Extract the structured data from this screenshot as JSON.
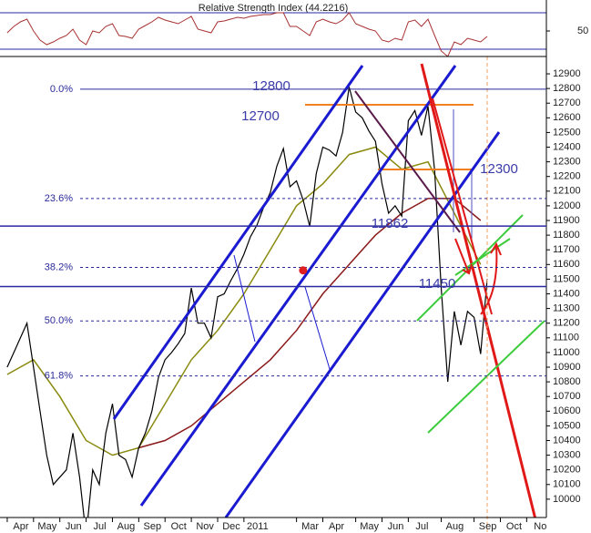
{
  "chart_data": {
    "type": "line",
    "rsi_title": "Relative Strength Index (44.2216)",
    "x": [
      0,
      1,
      2,
      3,
      4,
      5,
      6,
      7,
      8,
      9,
      10,
      11,
      12,
      13,
      14,
      15,
      16,
      17,
      18,
      19,
      20,
      21,
      22,
      23,
      24,
      25,
      26,
      27,
      28,
      29,
      30,
      31,
      32,
      33,
      34,
      35,
      36,
      37,
      38,
      39,
      40,
      41,
      42,
      43,
      44,
      45,
      46,
      47,
      48,
      49,
      50,
      51,
      52,
      53,
      54,
      55,
      56,
      57,
      58,
      59,
      60,
      61,
      62,
      63,
      64,
      65,
      66,
      67,
      68,
      69,
      70,
      71,
      72,
      73
    ],
    "series": [
      {
        "color": "#000000",
        "values": [
          10900,
          11000,
          11100,
          11200,
          10900,
          10600,
          10300,
          10100,
          10150,
          10200,
          10450,
          10150,
          9750,
          10200,
          10100,
          10450,
          10650,
          10300,
          10270,
          10150,
          10350,
          10450,
          10600,
          10830,
          10950,
          11000,
          11060,
          11130,
          11440,
          11200,
          11200,
          11100,
          11380,
          11400,
          11490,
          11570,
          11670,
          11790,
          11870,
          11990,
          12090,
          12270,
          12390,
          12130,
          12170,
          12040,
          11860,
          12220,
          12400,
          12380,
          12340,
          12500,
          12810,
          12640,
          12600,
          12510,
          12440,
          12150,
          11950,
          12000,
          11930,
          12580,
          12650,
          12480,
          12680,
          12240,
          11440,
          10800,
          11280,
          11050,
          11280,
          11240,
          10990,
          11500
        ]
      }
    ],
    "moving_averages": [
      {
        "color": "#8a8a10",
        "x": [
          0,
          4,
          8,
          12,
          16,
          20,
          24,
          28,
          32,
          36,
          40,
          44,
          48,
          52,
          56,
          60,
          64,
          68,
          72
        ],
        "values": [
          10850,
          10950,
          10700,
          10400,
          10300,
          10350,
          10650,
          10950,
          11150,
          11400,
          11700,
          12000,
          12150,
          12350,
          12400,
          12250,
          12300,
          11950,
          11600
        ]
      },
      {
        "color": "#8b1a1a",
        "x": [
          20,
          24,
          28,
          32,
          36,
          40,
          44,
          48,
          52,
          56,
          60,
          64,
          68,
          72
        ],
        "values": [
          10350,
          10400,
          10500,
          10650,
          10800,
          10950,
          11150,
          11400,
          11600,
          11800,
          11950,
          12050,
          12050,
          11900
        ]
      }
    ],
    "rsi": {
      "color": "#a83232",
      "values": [
        48,
        55,
        60,
        63,
        50,
        40,
        35,
        38,
        42,
        45,
        52,
        40,
        35,
        50,
        48,
        55,
        58,
        45,
        44,
        42,
        52,
        56,
        60,
        65,
        62,
        60,
        58,
        62,
        66,
        52,
        50,
        48,
        60,
        61,
        63,
        65,
        64,
        66,
        67,
        68,
        68,
        70,
        70,
        55,
        55,
        50,
        45,
        60,
        63,
        60,
        58,
        62,
        70,
        58,
        55,
        52,
        50,
        40,
        38,
        42,
        40,
        60,
        62,
        55,
        63,
        45,
        28,
        22,
        38,
        35,
        42,
        40,
        38,
        44
      ],
      "ylim": [
        22,
        84
      ],
      "yticks": [
        50
      ],
      "levels": [
        30,
        70
      ]
    },
    "xlim": [
      -1.1,
      82
    ],
    "xticks": [
      {
        "value": 0,
        "label": "Apr"
      },
      {
        "value": 4,
        "label": "May"
      },
      {
        "value": 8,
        "label": "Jun"
      },
      {
        "value": 12,
        "label": "Jul"
      },
      {
        "value": 16,
        "label": "Aug"
      },
      {
        "value": 20,
        "label": "Sep"
      },
      {
        "value": 24,
        "label": "Oct"
      },
      {
        "value": 28,
        "label": "Nov"
      },
      {
        "value": 32,
        "label": "Dec"
      },
      {
        "value": 36,
        "label": "2011"
      },
      {
        "value": 44,
        "label": "Mar"
      },
      {
        "value": 48,
        "label": "Apr"
      },
      {
        "value": 53,
        "label": "May"
      },
      {
        "value": 57,
        "label": "Jun"
      },
      {
        "value": 61,
        "label": "Jul"
      },
      {
        "value": 66,
        "label": "Aug"
      },
      {
        "value": 71,
        "label": "Sep"
      },
      {
        "value": 75,
        "label": "Oct"
      },
      {
        "value": 79,
        "label": "No"
      }
    ],
    "ylim": [
      9875,
      13012
    ],
    "yticks": [
      10000,
      10100,
      10200,
      10300,
      10400,
      10500,
      10600,
      10700,
      10800,
      10900,
      11000,
      11100,
      11200,
      11300,
      11400,
      11500,
      11600,
      11700,
      11800,
      11900,
      12000,
      12100,
      12200,
      12300,
      12400,
      12500,
      12600,
      12700,
      12800,
      12900
    ],
    "fib_levels": [
      {
        "ratio_label": "0.0%",
        "price": 12795
      },
      {
        "ratio_label": "23.6%",
        "price": 12050
      },
      {
        "ratio_label": "38.2%",
        "price": 11580
      },
      {
        "ratio_label": "50.0%",
        "price": 11215
      },
      {
        "ratio_label": "61.8%",
        "price": 10840
      }
    ],
    "levels": [
      11862,
      11450
    ],
    "price_labels": [
      12800,
      12700,
      12300,
      11862,
      11450
    ],
    "marker_x": 45,
    "marker_value": 11560,
    "marker_color": "#e02020"
  }
}
